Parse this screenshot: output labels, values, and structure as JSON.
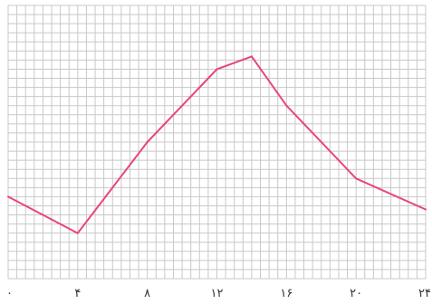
{
  "chart_data": {
    "type": "line",
    "title": "",
    "xlabel": "",
    "ylabel": "",
    "x_ticks": [
      {
        "value": 0,
        "label": "۰"
      },
      {
        "value": 4,
        "label": "۴"
      },
      {
        "value": 8,
        "label": "۸"
      },
      {
        "value": 12,
        "label": "۱۲"
      },
      {
        "value": 16,
        "label": "۱۶"
      },
      {
        "value": 20,
        "label": "۲۰"
      },
      {
        "value": 24,
        "label": "۲۴"
      }
    ],
    "xlim": [
      0,
      24
    ],
    "ylim": [
      0,
      15
    ],
    "grid": true,
    "line_color": "#e8467c",
    "grid_color": "#c8c8c8",
    "series": [
      {
        "x": [
          0,
          4,
          8,
          12,
          14,
          16,
          20,
          24
        ],
        "y": [
          4.5,
          2.5,
          7.5,
          11.5,
          12.2,
          9.5,
          5.5,
          3.8
        ]
      }
    ]
  }
}
